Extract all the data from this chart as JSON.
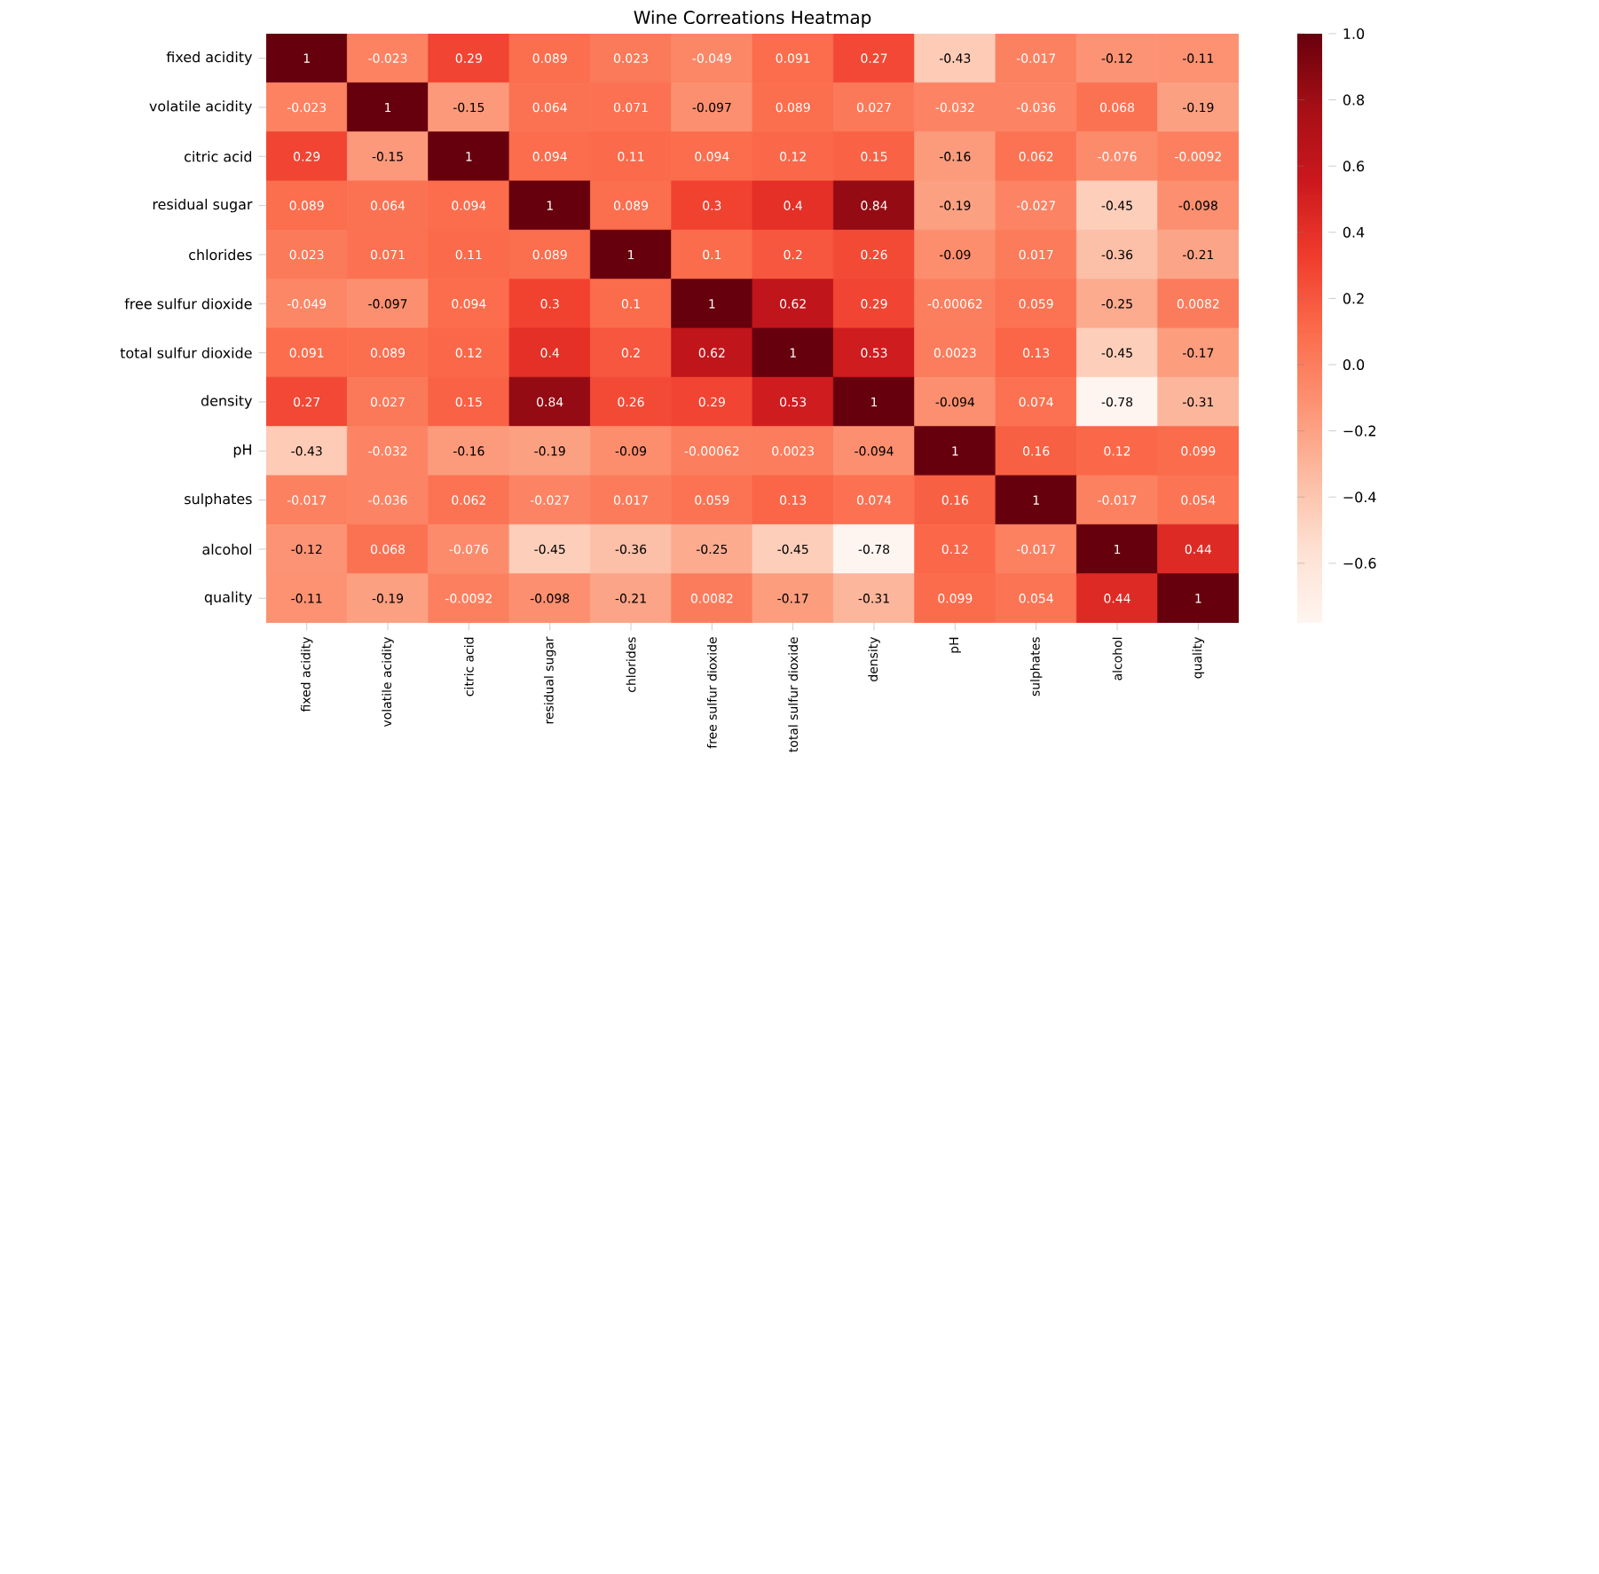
{
  "chart_data": {
    "type": "heatmap",
    "title": "Wine Correations Heatmap",
    "categories": [
      "fixed acidity",
      "volatile acidity",
      "citric acid",
      "residual sugar",
      "chlorides",
      "free sulfur dioxide",
      "total sulfur dioxide",
      "density",
      "pH",
      "sulphates",
      "alcohol",
      "quality"
    ],
    "y_categories": [
      "fixed acidity",
      "volatile acidity",
      "citric acid",
      "residual sugar",
      "chlorides",
      "free sulfur dioxide",
      "total sulfur dioxide",
      "density",
      "pH",
      "sulphates",
      "alcohol",
      "quality"
    ],
    "cells": [
      [
        1,
        -0.023,
        0.29,
        0.089,
        0.023,
        -0.049,
        0.091,
        0.27,
        -0.43,
        -0.017,
        -0.12,
        -0.11
      ],
      [
        -0.023,
        1,
        -0.15,
        0.064,
        0.071,
        -0.097,
        0.089,
        0.027,
        -0.032,
        -0.036,
        0.068,
        -0.19
      ],
      [
        0.29,
        -0.15,
        1,
        0.094,
        0.11,
        0.094,
        0.12,
        0.15,
        -0.16,
        0.062,
        -0.076,
        -0.0092
      ],
      [
        0.089,
        0.064,
        0.094,
        1,
        0.089,
        0.3,
        0.4,
        0.84,
        -0.19,
        -0.027,
        -0.45,
        -0.098
      ],
      [
        0.023,
        0.071,
        0.11,
        0.089,
        1,
        0.1,
        0.2,
        0.26,
        -0.09,
        0.017,
        -0.36,
        -0.21
      ],
      [
        -0.049,
        -0.097,
        0.094,
        0.3,
        0.1,
        1,
        0.62,
        0.29,
        -0.00062,
        0.059,
        -0.25,
        0.0082
      ],
      [
        0.091,
        0.089,
        0.12,
        0.4,
        0.2,
        0.62,
        1,
        0.53,
        0.0023,
        0.13,
        -0.45,
        -0.17
      ],
      [
        0.27,
        0.027,
        0.15,
        0.84,
        0.26,
        0.29,
        0.53,
        1,
        -0.094,
        0.074,
        -0.78,
        -0.31
      ],
      [
        -0.43,
        -0.032,
        -0.16,
        -0.19,
        -0.09,
        -0.00062,
        0.0023,
        -0.094,
        1,
        0.16,
        0.12,
        0.099
      ],
      [
        -0.017,
        -0.036,
        0.062,
        -0.027,
        0.017,
        0.059,
        0.13,
        0.074,
        0.16,
        1,
        -0.017,
        0.054
      ],
      [
        -0.12,
        0.068,
        -0.076,
        -0.45,
        -0.36,
        -0.25,
        -0.45,
        -0.78,
        0.12,
        -0.017,
        1,
        0.44
      ],
      [
        -0.11,
        -0.19,
        -0.0092,
        -0.098,
        -0.21,
        0.0082,
        -0.17,
        -0.31,
        0.099,
        0.054,
        0.44,
        1
      ]
    ],
    "data_labels": true,
    "clim": [
      -0.78,
      1.0
    ],
    "cticks": [
      {
        "value": -0.6,
        "label": "−0.6"
      },
      {
        "value": -0.4,
        "label": "−0.4"
      },
      {
        "value": -0.2,
        "label": "−0.2"
      },
      {
        "value": 0.0,
        "label": "0.0"
      },
      {
        "value": 0.2,
        "label": "0.2"
      },
      {
        "value": 0.4,
        "label": "0.4"
      },
      {
        "value": 0.6,
        "label": "0.6"
      },
      {
        "value": 0.8,
        "label": "0.8"
      },
      {
        "value": 1.0,
        "label": "1.0"
      }
    ]
  }
}
